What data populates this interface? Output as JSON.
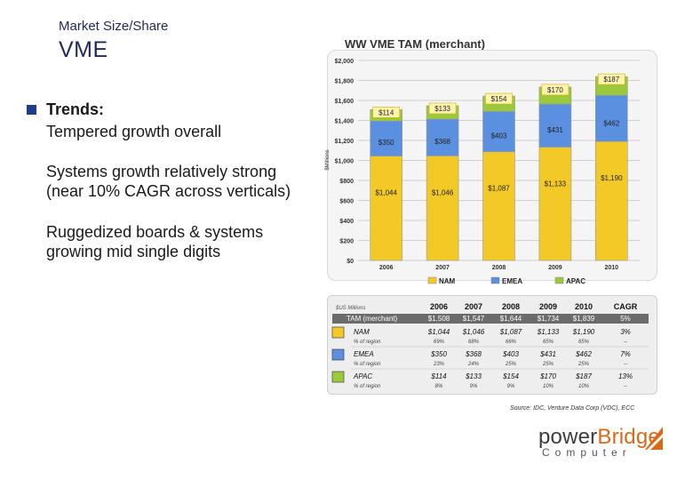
{
  "slide": {
    "subtitle": "Market Size/Share",
    "title": "VME",
    "trends_heading": "Trends:",
    "lines": [
      "Tempered growth overall",
      "Systems growth relatively strong",
      "(near 10% CAGR across verticals)",
      "Ruggedized boards & systems",
      "growing mid single digits"
    ],
    "source": "Source: IDC, Venture Data Corp (VDC), ECC",
    "logo": {
      "power": "power",
      "bridge": "Bridge",
      "sub": "Computer"
    }
  },
  "colors": {
    "nam": "#f2c927",
    "emea": "#5b8fe0",
    "apac": "#9cc83c",
    "bullet": "#1f3b8c",
    "accent": "#d86a19"
  },
  "chart_data": {
    "type": "bar",
    "stacked": true,
    "title": "WW VME TAM (merchant)",
    "ylabel": "$Millions",
    "ylim": [
      0,
      2000
    ],
    "yticks": [
      "$0",
      "$200",
      "$400",
      "$600",
      "$800",
      "$1,000",
      "$1,200",
      "$1,400",
      "$1,600",
      "$1,800",
      "$2,000"
    ],
    "categories": [
      "2006",
      "2007",
      "2008",
      "2009",
      "2010"
    ],
    "series": [
      {
        "name": "NAM",
        "values": [
          1044,
          1046,
          1087,
          1133,
          1190
        ],
        "labels": [
          "$1,044",
          "$1,046",
          "$1,087",
          "$1,133",
          "$1,190"
        ]
      },
      {
        "name": "EMEA",
        "values": [
          350,
          368,
          403,
          431,
          462
        ],
        "labels": [
          "$350",
          "$368",
          "$403",
          "$431",
          "$462"
        ]
      },
      {
        "name": "APAC",
        "values": [
          114,
          133,
          154,
          170,
          187
        ],
        "labels": [
          "$114",
          "$133",
          "$154",
          "$170",
          "$187"
        ]
      }
    ],
    "legend_position": "bottom"
  },
  "table": {
    "corner": "$US Millions",
    "headers": [
      "2006",
      "2007",
      "2008",
      "2009",
      "2010",
      "CAGR"
    ],
    "tam_label": "TAM (merchant)",
    "tam_values": [
      "$1,508",
      "$1,547",
      "$1,644",
      "$1,734",
      "$1,839",
      "5%"
    ],
    "pct_label": "% of region",
    "rows": [
      {
        "name": "NAM",
        "values": [
          "$1,044",
          "$1,046",
          "$1,087",
          "$1,133",
          "$1,190",
          "3%"
        ],
        "pct": [
          "69%",
          "68%",
          "66%",
          "65%",
          "65%",
          "--"
        ]
      },
      {
        "name": "EMEA",
        "values": [
          "$350",
          "$368",
          "$403",
          "$431",
          "$462",
          "7%"
        ],
        "pct": [
          "23%",
          "24%",
          "25%",
          "25%",
          "25%",
          "--"
        ]
      },
      {
        "name": "APAC",
        "values": [
          "$114",
          "$133",
          "$154",
          "$170",
          "$187",
          "13%"
        ],
        "pct": [
          "8%",
          "9%",
          "9%",
          "10%",
          "10%",
          "--"
        ]
      }
    ]
  }
}
